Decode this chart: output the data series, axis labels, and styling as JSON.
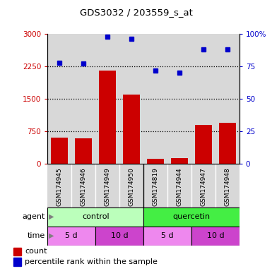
{
  "title": "GDS3032 / 203559_s_at",
  "samples": [
    "GSM174945",
    "GSM174946",
    "GSM174949",
    "GSM174950",
    "GSM174819",
    "GSM174944",
    "GSM174947",
    "GSM174948"
  ],
  "counts": [
    600,
    590,
    2150,
    1600,
    120,
    130,
    900,
    950
  ],
  "percentiles": [
    78,
    77,
    98,
    96,
    72,
    70,
    88,
    88
  ],
  "ylim_left": [
    0,
    3000
  ],
  "ylim_right": [
    0,
    100
  ],
  "yticks_left": [
    0,
    750,
    1500,
    2250,
    3000
  ],
  "ytick_labels_left": [
    "0",
    "750",
    "1500",
    "2250",
    "3000"
  ],
  "yticks_right": [
    0,
    25,
    50,
    75,
    100
  ],
  "ytick_labels_right": [
    "0",
    "25",
    "50",
    "75",
    "100%"
  ],
  "bar_color": "#cc0000",
  "dot_color": "#0000cc",
  "agent_control_color": "#bbffbb",
  "agent_quercetin_color": "#44ee44",
  "time_5d_color": "#ee88ee",
  "time_10d_color": "#cc44cc",
  "col_bg_color": "#d8d8d8",
  "grid_color": "black"
}
